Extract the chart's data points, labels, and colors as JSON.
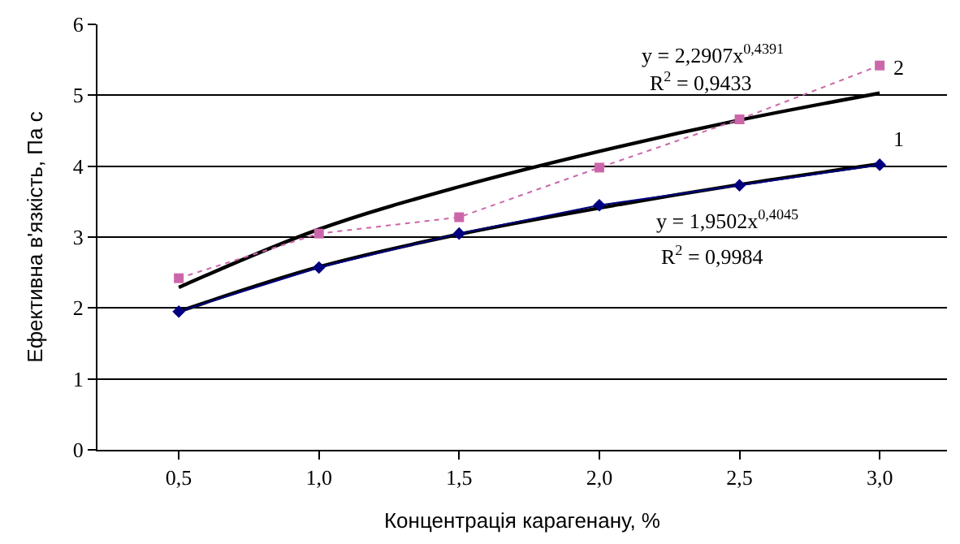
{
  "chart_data": {
    "type": "line",
    "xlabel": "Концентрація карагенану, %",
    "ylabel": "Ефективна в'язкість, Па с",
    "x": [
      0.5,
      1.0,
      1.5,
      2.0,
      2.5,
      3.0
    ],
    "xlim": [
      0.21,
      3.24
    ],
    "xticks": [
      {
        "value": 0.5,
        "label": "0,5"
      },
      {
        "value": 1.0,
        "label": "1,0"
      },
      {
        "value": 1.5,
        "label": "1,5"
      },
      {
        "value": 2.0,
        "label": "2,0"
      },
      {
        "value": 2.5,
        "label": "2,5"
      },
      {
        "value": 3.0,
        "label": "3,0"
      }
    ],
    "ylim": [
      0,
      6
    ],
    "yticks": [
      0,
      1,
      2,
      3,
      4,
      5,
      6
    ],
    "grid": "y",
    "series": [
      {
        "color": "#000000",
        "values": [
          2.29,
          3.11,
          3.71,
          4.21,
          4.65,
          5.03
        ],
        "marker": "none",
        "line_style": "solid"
      },
      {
        "color": "#000000",
        "values": [
          1.95,
          2.58,
          3.04,
          3.41,
          3.74,
          4.03
        ],
        "marker": "none",
        "line_style": "solid"
      },
      {
        "color": "#000080",
        "values": [
          1.95,
          2.57,
          3.05,
          3.45,
          3.73,
          4.02
        ],
        "marker": "diamond",
        "line_style": "solid"
      },
      {
        "color": "#cc66aa",
        "values": [
          2.42,
          3.05,
          3.28,
          3.98,
          4.66,
          5.42
        ],
        "marker": "square",
        "line_style": "dotted"
      }
    ],
    "annotations": [
      "y = 2,2907x$^{0,4391}$",
      "R$^{2}$ = 0,9433",
      "y = 1,9502x$^{0,4045}$",
      "R$^{2}$ = 0,9984",
      "2",
      "1"
    ]
  }
}
